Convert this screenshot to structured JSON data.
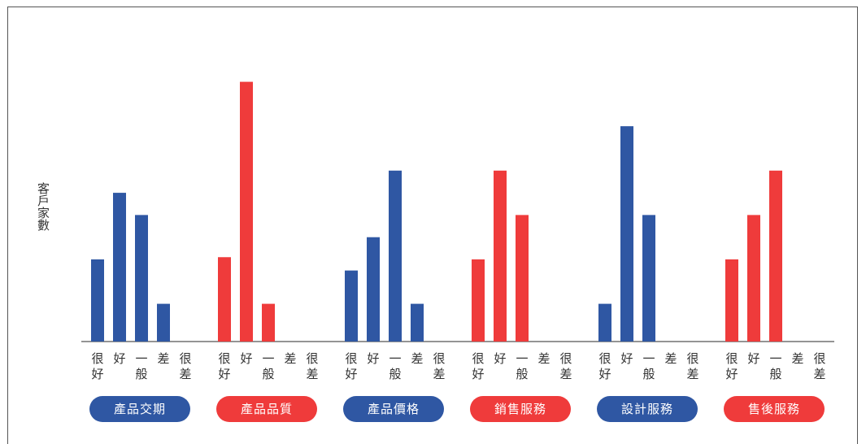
{
  "chart_data": {
    "type": "bar",
    "ylabel": "客戶家數",
    "rating_labels": [
      "很好",
      "好",
      "一般",
      "差",
      "很差"
    ],
    "colors": {
      "blue": "#2f57a3",
      "red": "#ef3b3b"
    },
    "groups": [
      {
        "name": "產品交期",
        "color": "blue",
        "values": [
          3.7,
          6.7,
          5.7,
          1.7,
          0
        ]
      },
      {
        "name": "產品品質",
        "color": "red",
        "values": [
          3.8,
          11.7,
          1.7,
          0,
          0
        ]
      },
      {
        "name": "產品價格",
        "color": "blue",
        "values": [
          3.2,
          4.7,
          7.7,
          1.7,
          0
        ]
      },
      {
        "name": "銷售服務",
        "color": "red",
        "values": [
          3.7,
          7.7,
          5.7,
          0,
          0
        ]
      },
      {
        "name": "設計服務",
        "color": "blue",
        "values": [
          1.7,
          9.7,
          5.7,
          0,
          0
        ]
      },
      {
        "name": "售後服務",
        "color": "red",
        "values": [
          3.7,
          5.7,
          7.7,
          0,
          0
        ]
      }
    ]
  }
}
